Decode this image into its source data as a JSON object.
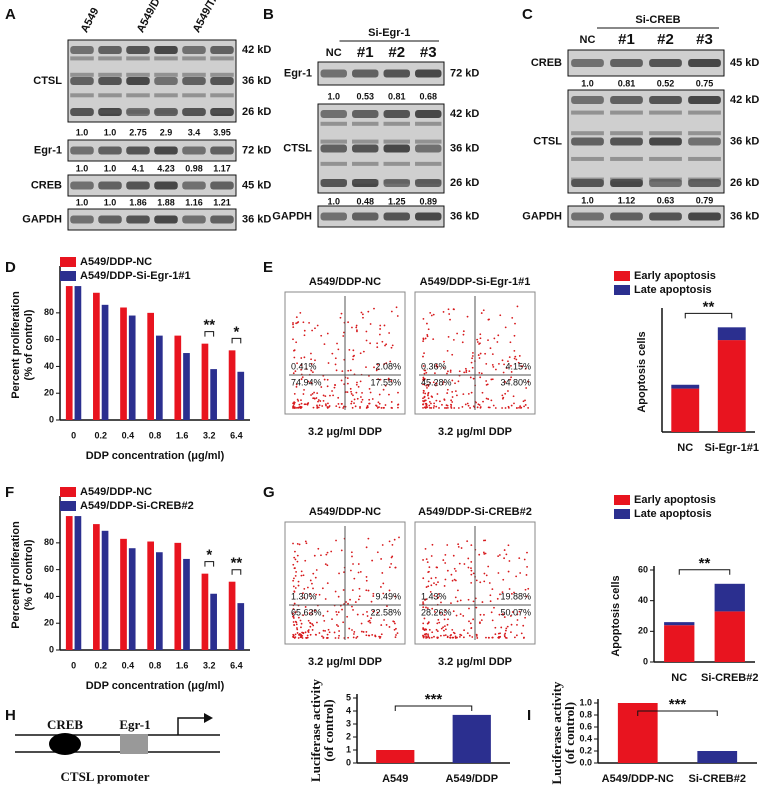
{
  "panel_labels": [
    "A",
    "B",
    "C",
    "D",
    "E",
    "F",
    "G",
    "H",
    "I"
  ],
  "blots": [
    {
      "lanes": [
        "A549",
        "A549/DDP",
        "A549/TAX"
      ],
      "rows": [
        {
          "name": "CTSL",
          "markers": [
            "42 kD",
            "36 kD",
            "26 kD"
          ],
          "quant": [
            "1.0",
            "1.0",
            "2.75",
            "2.9",
            "3.4",
            "3.95"
          ]
        },
        {
          "name": "Egr-1",
          "markers": [
            "72 kD"
          ],
          "quant": [
            "1.0",
            "1.0",
            "4.1",
            "4.23",
            "0.98",
            "1.17"
          ]
        },
        {
          "name": "CREB",
          "markers": [
            "45 kD"
          ],
          "quant": [
            "1.0",
            "1.0",
            "1.86",
            "1.88",
            "1.16",
            "1.21"
          ]
        },
        {
          "name": "GAPDH",
          "markers": [
            "36 kD"
          ]
        }
      ]
    },
    {
      "group": "Si-Egr-1",
      "lanes": [
        "NC",
        "#1",
        "#2",
        "#3"
      ],
      "rows": [
        {
          "name": "Egr-1",
          "markers": [
            "72 kD"
          ],
          "quant": [
            "1.0",
            "0.53",
            "0.81",
            "0.68"
          ]
        },
        {
          "name": "CTSL",
          "markers": [
            "42 kD",
            "36 kD",
            "26 kD"
          ],
          "quant": [
            "1.0",
            "0.48",
            "1.25",
            "0.89"
          ]
        },
        {
          "name": "GAPDH",
          "markers": [
            "36 kD"
          ]
        }
      ]
    },
    {
      "group": "Si-CREB",
      "lanes": [
        "NC",
        "#1",
        "#2",
        "#3"
      ],
      "rows": [
        {
          "name": "CREB",
          "markers": [
            "45 kD"
          ],
          "quant": [
            "1.0",
            "0.81",
            "0.52",
            "0.75"
          ]
        },
        {
          "name": "CTSL",
          "markers": [
            "42 kD",
            "36 kD",
            "26 kD"
          ],
          "quant": [
            "1.0",
            "1.12",
            "0.63",
            "0.79"
          ]
        },
        {
          "name": "GAPDH",
          "markers": [
            "36 kD"
          ]
        }
      ]
    }
  ],
  "flow_plots": [
    {
      "title": "A549/DDP-NC",
      "quadrants": [
        "0.41%",
        "2.08%",
        "74.94%",
        "17.55%"
      ],
      "caption": "3.2 μg/ml DDP"
    },
    {
      "title": "A549/DDP-Si-Egr-1#1",
      "quadrants": [
        "0.36%",
        "4.15%",
        "45.28%",
        "34.80%"
      ],
      "caption": "3.2 μg/ml DDP"
    },
    {
      "title": "A549/DDP-NC",
      "quadrants": [
        "1.30%",
        "9.49%",
        "65.63%",
        "22.58%"
      ],
      "caption": "3.2 μg/ml DDP"
    },
    {
      "title": "A549/DDP-Si-CREB#2",
      "quadrants": [
        "1.43%",
        "19.88%",
        "28.26%",
        "50.07%"
      ],
      "caption": "3.2 μg/ml DDP"
    }
  ],
  "diagram": {
    "boxes": [
      "CREB",
      "Egr-1"
    ],
    "caption": "CTSL promoter"
  },
  "chart_data": [
    {
      "type": "bar",
      "categories": [
        "0",
        "0.2",
        "0.4",
        "0.8",
        "1.6",
        "3.2",
        "6.4"
      ],
      "series": [
        {
          "name": "A549/DDP-NC",
          "color": "#e8141f",
          "values": [
            100,
            95,
            84,
            80,
            63,
            57,
            52
          ]
        },
        {
          "name": "A549/DDP-Si-Egr-1#1",
          "color": "#2b2f8f",
          "values": [
            100,
            86,
            78,
            63,
            50,
            38,
            36
          ]
        }
      ],
      "significance": [
        null,
        null,
        null,
        null,
        null,
        "**",
        "*"
      ],
      "y_label": [
        "Percent proliferation",
        "(% of control)"
      ],
      "x_label": "DDP concentration (μg/ml)",
      "ylim": [
        0,
        112
      ],
      "yticks": [
        0,
        20,
        40,
        60,
        80
      ]
    },
    {
      "type": "stacked_bar",
      "categories": [
        "NC",
        "Si-Egr-1#1"
      ],
      "series": [
        {
          "name": "Early apoptosis",
          "color": "#e8141f",
          "values": [
            17,
            36
          ]
        },
        {
          "name": "Late apoptosis",
          "color": "#2b2f8f",
          "values": [
            1.5,
            5
          ]
        }
      ],
      "comparison": "**",
      "y_label": [
        "Apoptosis cells"
      ],
      "ylim": [
        0,
        47
      ]
    },
    {
      "type": "bar",
      "categories": [
        "0",
        "0.2",
        "0.4",
        "0.8",
        "1.6",
        "3.2",
        "6.4"
      ],
      "series": [
        {
          "name": "A549/DDP-NC",
          "color": "#e8141f",
          "values": [
            100,
            94,
            83,
            81,
            80,
            57,
            51
          ]
        },
        {
          "name": "A549/DDP-Si-CREB#2",
          "color": "#2b2f8f",
          "values": [
            100,
            89,
            76,
            73,
            68,
            42,
            35
          ]
        }
      ],
      "significance": [
        null,
        null,
        null,
        null,
        null,
        "*",
        "**"
      ],
      "y_label": [
        "Percent proliferation",
        "(% of control)"
      ],
      "x_label": "DDP concentration (μg/ml)",
      "ylim": [
        0,
        112
      ],
      "yticks": [
        0,
        20,
        40,
        60,
        80
      ]
    },
    {
      "type": "stacked_bar",
      "categories": [
        "NC",
        "Si-CREB#2"
      ],
      "series": [
        {
          "name": "Early apoptosis",
          "color": "#e8141f",
          "values": [
            24,
            33
          ]
        },
        {
          "name": "Late apoptosis",
          "color": "#2b2f8f",
          "values": [
            2,
            18
          ]
        }
      ],
      "comparison": "**",
      "y_label": [
        "Apoptosis cells"
      ],
      "ylim": [
        0,
        60
      ],
      "yticks": [
        0,
        20,
        40,
        60
      ]
    },
    {
      "type": "bar",
      "categories": [
        "A549",
        "A549/DDP"
      ],
      "values": [
        1,
        3.7
      ],
      "colors": [
        "#e8141f",
        "#2b2f8f"
      ],
      "comparison": "***",
      "y_label": [
        "Luciferase activity",
        "(of control)"
      ],
      "ylim": [
        0,
        5
      ],
      "yticks": [
        0,
        1,
        2,
        3,
        4,
        5
      ]
    },
    {
      "type": "bar",
      "categories": [
        "A549/DDP-NC",
        "Si-CREB#2"
      ],
      "values": [
        1,
        0.2
      ],
      "colors": [
        "#e8141f",
        "#2b2f8f"
      ],
      "comparison": "***",
      "y_label": [
        "Luciferase activity",
        "(of control)"
      ],
      "ylim": [
        0,
        1.0
      ],
      "yticks": [
        {
          "value": 0,
          "label": "0.0"
        },
        0.2,
        0.4,
        0.6,
        0.8,
        {
          "value": 1,
          "label": "1.0"
        }
      ]
    }
  ]
}
